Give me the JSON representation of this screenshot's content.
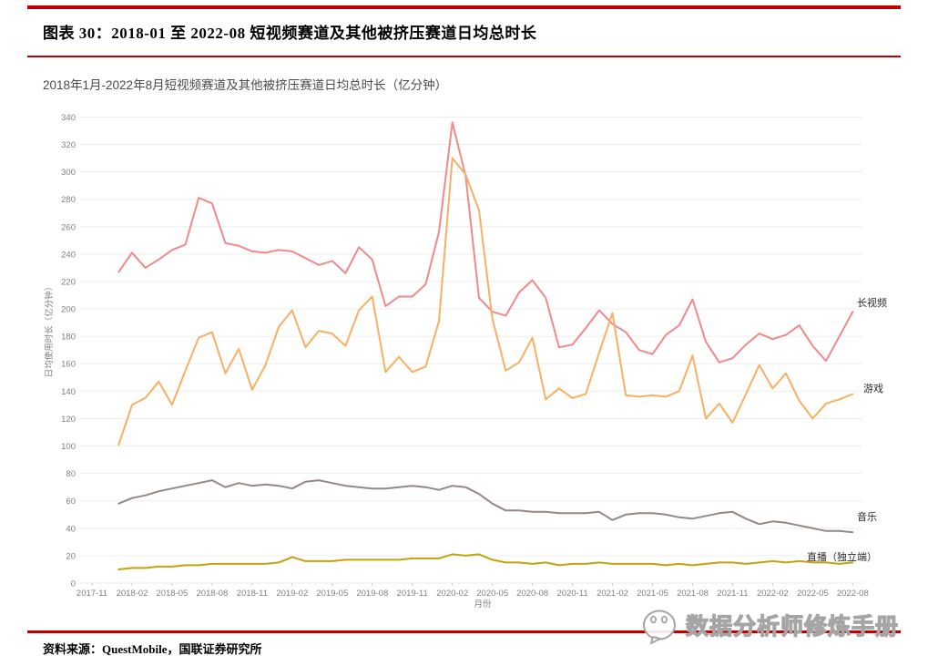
{
  "header": {
    "title": "图表 30：2018-01 至 2022-08 短视频赛道及其他被挤压赛道日均总时长"
  },
  "chart_data": {
    "type": "line",
    "title": "2018年1月-2022年8月短视频赛道及其他被挤压赛道日均总时长（亿分钟）",
    "ylabel": "日均使用时长（亿分钟）",
    "xlabel": "月份",
    "ylim": [
      0,
      340
    ],
    "ytick_step": 20,
    "grid": true,
    "legend_position": "line-end-labels",
    "x_tick_labels": [
      "2017-11",
      "2018-02",
      "2018-05",
      "2018-08",
      "2018-11",
      "2019-02",
      "2019-05",
      "2019-08",
      "2019-11",
      "2020-02",
      "2020-05",
      "2020-08",
      "2020-11",
      "2021-02",
      "2021-05",
      "2021-08",
      "2021-11",
      "2022-02",
      "2022-05",
      "2022-08"
    ],
    "months": [
      "2018-01",
      "2018-02",
      "2018-03",
      "2018-04",
      "2018-05",
      "2018-06",
      "2018-07",
      "2018-08",
      "2018-09",
      "2018-10",
      "2018-11",
      "2018-12",
      "2019-01",
      "2019-02",
      "2019-03",
      "2019-04",
      "2019-05",
      "2019-06",
      "2019-07",
      "2019-08",
      "2019-09",
      "2019-10",
      "2019-11",
      "2019-12",
      "2020-01",
      "2020-02",
      "2020-03",
      "2020-04",
      "2020-05",
      "2020-06",
      "2020-07",
      "2020-08",
      "2020-09",
      "2020-10",
      "2020-11",
      "2020-12",
      "2021-01",
      "2021-02",
      "2021-03",
      "2021-04",
      "2021-05",
      "2021-06",
      "2021-07",
      "2021-08",
      "2021-09",
      "2021-10",
      "2021-11",
      "2021-12",
      "2022-01",
      "2022-02",
      "2022-03",
      "2022-04",
      "2022-05",
      "2022-06",
      "2022-07",
      "2022-08"
    ],
    "series": [
      {
        "name": "长视频",
        "color": "#F1898C",
        "values": [
          227,
          241,
          230,
          236,
          243,
          247,
          281,
          277,
          248,
          246,
          242,
          241,
          243,
          242,
          237,
          232,
          235,
          226,
          245,
          236,
          202,
          209,
          209,
          218,
          256,
          336,
          297,
          208,
          198,
          195,
          212,
          221,
          208,
          172,
          174,
          186,
          199,
          189,
          183,
          170,
          167,
          181,
          188,
          207,
          176,
          161,
          164,
          174,
          182,
          178,
          181,
          188,
          173,
          162,
          180,
          198
        ]
      },
      {
        "name": "游戏",
        "color": "#F9AF63",
        "values": [
          101,
          130,
          135,
          147,
          130,
          155,
          179,
          183,
          153,
          171,
          141,
          159,
          187,
          199,
          172,
          184,
          182,
          173,
          199,
          209,
          154,
          165,
          154,
          158,
          191,
          310,
          298,
          272,
          193,
          155,
          161,
          179,
          134,
          142,
          135,
          138,
          168,
          197,
          137,
          136,
          137,
          136,
          140,
          166,
          120,
          131,
          117,
          138,
          159,
          142,
          153,
          133,
          120,
          131,
          134,
          138
        ]
      },
      {
        "name": "音乐",
        "color": "#968784",
        "values": [
          58,
          62,
          64,
          67,
          69,
          71,
          73,
          75,
          70,
          73,
          71,
          72,
          71,
          69,
          74,
          75,
          73,
          71,
          70,
          69,
          69,
          70,
          71,
          70,
          68,
          71,
          70,
          65,
          58,
          53,
          53,
          52,
          52,
          51,
          51,
          51,
          52,
          46,
          50,
          51,
          51,
          50,
          48,
          47,
          49,
          51,
          52,
          47,
          43,
          45,
          44,
          42,
          40,
          38,
          38,
          37
        ]
      },
      {
        "name": "直播（独立端）",
        "color": "#C3A30B",
        "values": [
          10,
          11,
          11,
          12,
          12,
          13,
          13,
          14,
          14,
          14,
          14,
          14,
          15,
          19,
          16,
          16,
          16,
          17,
          17,
          17,
          17,
          17,
          18,
          18,
          18,
          21,
          20,
          21,
          17,
          15,
          15,
          14,
          15,
          13,
          14,
          14,
          15,
          14,
          14,
          14,
          14,
          13,
          14,
          13,
          14,
          15,
          15,
          14,
          15,
          16,
          15,
          16,
          15,
          15,
          14,
          15
        ]
      }
    ]
  },
  "footer": {
    "source": "资料来源：QuestMobile，国联证券研究所"
  },
  "watermark": {
    "text": "数据分析师修炼手册",
    "icon": "wechat-face-icon"
  }
}
